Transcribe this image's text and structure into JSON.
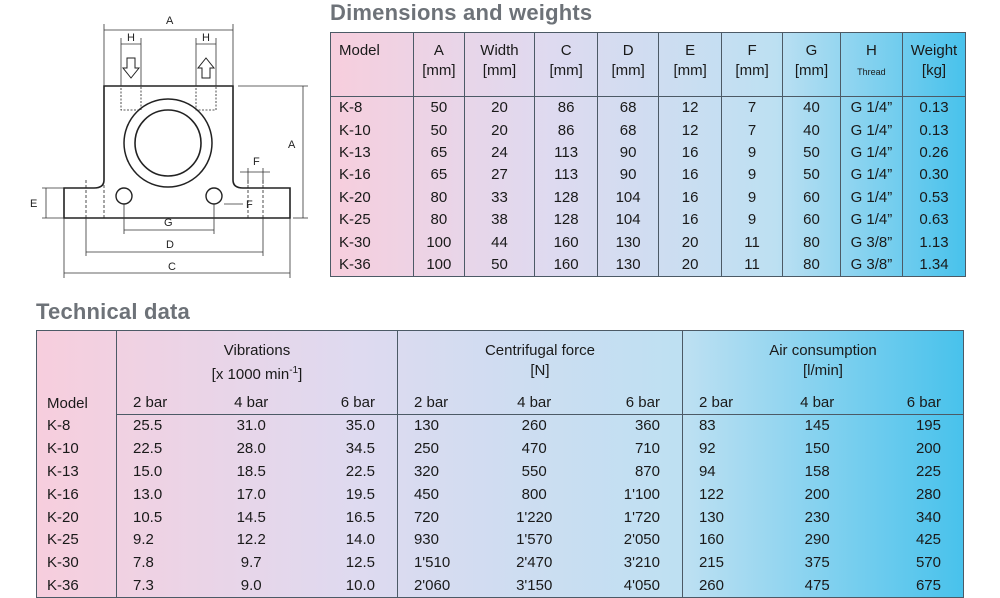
{
  "drawing": {
    "labels": {
      "A_top": "A",
      "A_side": "A",
      "H_left": "H",
      "H_right": "H",
      "F": "F",
      "E": "E",
      "G": "G",
      "D": "D",
      "C": "C"
    }
  },
  "dimensions": {
    "title": "Dimensions and weights",
    "headers": [
      {
        "l1": "Model",
        "l2": ""
      },
      {
        "l1": "A",
        "l2": "[mm]"
      },
      {
        "l1": "Width",
        "l2": "[mm]"
      },
      {
        "l1": "C",
        "l2": "[mm]"
      },
      {
        "l1": "D",
        "l2": "[mm]"
      },
      {
        "l1": "E",
        "l2": "[mm]"
      },
      {
        "l1": "F",
        "l2": "[mm]"
      },
      {
        "l1": "G",
        "l2": "[mm]"
      },
      {
        "l1": "H",
        "l2": "Thread"
      },
      {
        "l1": "Weight",
        "l2": "[kg]"
      }
    ],
    "rows": [
      [
        "K-8",
        "50",
        "20",
        "86",
        "68",
        "12",
        "7",
        "40",
        "G 1/4”",
        "0.13"
      ],
      [
        "K-10",
        "50",
        "20",
        "86",
        "68",
        "12",
        "7",
        "40",
        "G 1/4”",
        "0.13"
      ],
      [
        "K-13",
        "65",
        "24",
        "113",
        "90",
        "16",
        "9",
        "50",
        "G 1/4”",
        "0.26"
      ],
      [
        "K-16",
        "65",
        "27",
        "113",
        "90",
        "16",
        "9",
        "50",
        "G 1/4”",
        "0.30"
      ],
      [
        "K-20",
        "80",
        "33",
        "128",
        "104",
        "16",
        "9",
        "60",
        "G 1/4”",
        "0.53"
      ],
      [
        "K-25",
        "80",
        "38",
        "128",
        "104",
        "16",
        "9",
        "60",
        "G 1/4”",
        "0.63"
      ],
      [
        "K-30",
        "100",
        "44",
        "160",
        "130",
        "20",
        "11",
        "80",
        "G 3/8”",
        "1.13"
      ],
      [
        "K-36",
        "100",
        "50",
        "160",
        "130",
        "20",
        "11",
        "80",
        "G 3/8”",
        "1.34"
      ]
    ]
  },
  "technical": {
    "title": "Technical data",
    "model_header": "Model",
    "groups": [
      {
        "name": "Vibrations",
        "unit_pre": "[x 1000 min",
        "unit_sup": "-1",
        "unit_post": "]"
      },
      {
        "name": "Centrifugal force",
        "unit_pre": "[N]",
        "unit_sup": "",
        "unit_post": ""
      },
      {
        "name": "Air consumption",
        "unit_pre": "[l/min]",
        "unit_sup": "",
        "unit_post": ""
      }
    ],
    "sub": [
      "2 bar",
      "4 bar",
      "6 bar"
    ],
    "rows": [
      [
        "K-8",
        "25.5",
        "31.0",
        "35.0",
        "130",
        "260",
        "360",
        "83",
        "145",
        "195"
      ],
      [
        "K-10",
        "22.5",
        "28.0",
        "34.5",
        "250",
        "470",
        "710",
        "92",
        "150",
        "200"
      ],
      [
        "K-13",
        "15.0",
        "18.5",
        "22.5",
        "320",
        "550",
        "870",
        "94",
        "158",
        "225"
      ],
      [
        "K-16",
        "13.0",
        "17.0",
        "19.5",
        "450",
        "800",
        "1'100",
        "122",
        "200",
        "280"
      ],
      [
        "K-20",
        "10.5",
        "14.5",
        "16.5",
        "720",
        "1'220",
        "1'720",
        "130",
        "230",
        "340"
      ],
      [
        "K-25",
        "9.2",
        "12.2",
        "14.0",
        "930",
        "1'570",
        "2'050",
        "160",
        "290",
        "425"
      ],
      [
        "K-30",
        "7.8",
        "9.7",
        "12.5",
        "1'510",
        "2'470",
        "3'210",
        "215",
        "375",
        "570"
      ],
      [
        "K-36",
        "7.3",
        "9.0",
        "10.0",
        "2'060",
        "3'150",
        "4'050",
        "260",
        "475",
        "675"
      ]
    ]
  }
}
